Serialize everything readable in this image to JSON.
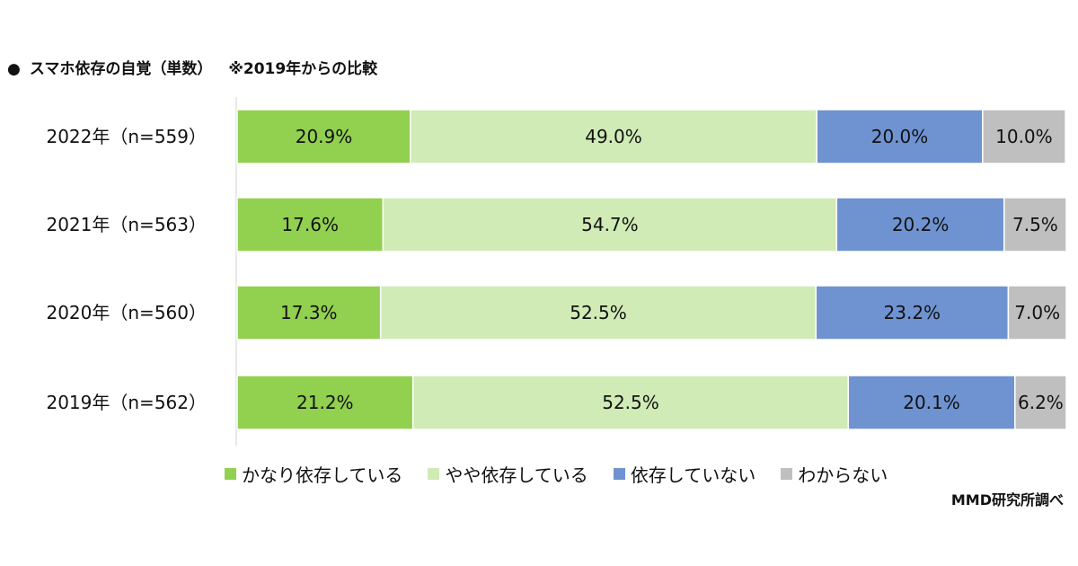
{
  "header": {
    "bullet": "●",
    "title": "スマホ依存の自覚（単数）",
    "note": "※2019年からの比較"
  },
  "source": "MMD研究所調べ",
  "colors": {
    "heavy": "#92d050",
    "somewhat": "#d0ebb6",
    "not": "#6f93d1",
    "unknown": "#bfbfbf"
  },
  "chart_data": {
    "type": "bar",
    "orientation": "horizontal",
    "stacked": true,
    "percent_stacked": true,
    "title": "スマホ依存の自覚（単数）",
    "categories": [
      "2022年（n=559）",
      "2021年（n=563）",
      "2020年（n=560）",
      "2019年（n=562）"
    ],
    "series": [
      {
        "name": "かなり依存している",
        "color": "#92d050",
        "values": [
          20.9,
          17.6,
          17.3,
          21.2
        ],
        "labels": [
          "20.9%",
          "17.6%",
          "17.3%",
          "21.2%"
        ]
      },
      {
        "name": "やや依存している",
        "color": "#d0ebb6",
        "values": [
          49.0,
          54.7,
          52.5,
          52.5
        ],
        "labels": [
          "49.0%",
          "54.7%",
          "52.5%",
          "52.5%"
        ]
      },
      {
        "name": "依存していない",
        "color": "#6f93d1",
        "values": [
          20.0,
          20.2,
          23.2,
          20.1
        ],
        "labels": [
          "20.0%",
          "20.2%",
          "23.2%",
          "20.1%"
        ]
      },
      {
        "name": "わからない",
        "color": "#bfbfbf",
        "values": [
          10.0,
          7.5,
          7.0,
          6.2
        ],
        "labels": [
          "10.0%",
          "7.5%",
          "7.0%",
          "6.2%"
        ]
      }
    ],
    "xlim": [
      0,
      100
    ],
    "grid": false,
    "legend": "bottom"
  }
}
